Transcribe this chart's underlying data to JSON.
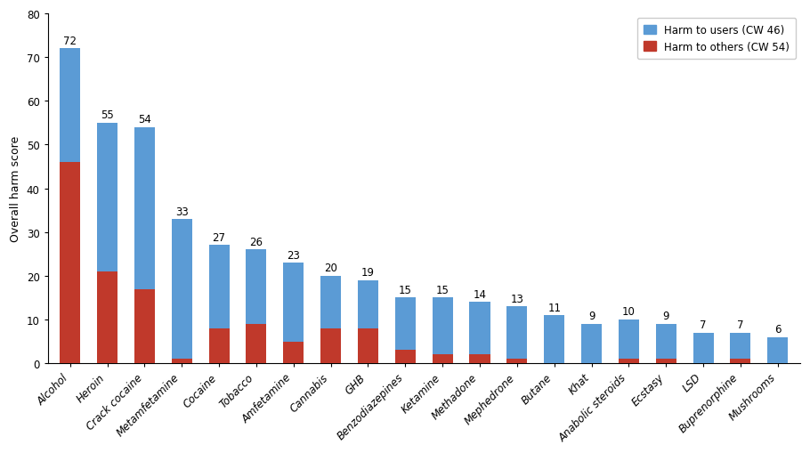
{
  "categories": [
    "Alcohol",
    "Heroin",
    "Crack cocaine",
    "Metamfetamine",
    "Cocaine",
    "Tobacco",
    "Amfetamine",
    "Cannabis",
    "GHB",
    "Benzodiazepines",
    "Ketamine",
    "Methadone",
    "Mephedrone",
    "Butane",
    "Khat",
    "Anabolic steroids",
    "Ecstasy",
    "LSD",
    "Buprenorphine",
    "Mushrooms"
  ],
  "totals": [
    72,
    55,
    54,
    33,
    27,
    26,
    23,
    20,
    19,
    15,
    15,
    14,
    13,
    11,
    9,
    10,
    9,
    7,
    7,
    6
  ],
  "harm_to_others": [
    46,
    21,
    17,
    1,
    8,
    9,
    5,
    8,
    8,
    3,
    2,
    2,
    1,
    0,
    0,
    1,
    1,
    0,
    1,
    0
  ],
  "harm_to_users": [
    26,
    34,
    37,
    32,
    19,
    17,
    18,
    12,
    11,
    12,
    13,
    12,
    12,
    11,
    9,
    9,
    8,
    7,
    6,
    6
  ],
  "color_users": "#5b9bd5",
  "color_others": "#c0392b",
  "ylabel": "Overall harm score",
  "ylim": [
    0,
    80
  ],
  "yticks": [
    0,
    10,
    20,
    30,
    40,
    50,
    60,
    70,
    80
  ],
  "legend_users": "Harm to users (CW 46)",
  "legend_others": "Harm to others (CW 54)",
  "ylabel_fontsize": 9,
  "label_fontsize": 8.5,
  "tick_fontsize": 8.5,
  "bar_width": 0.55
}
